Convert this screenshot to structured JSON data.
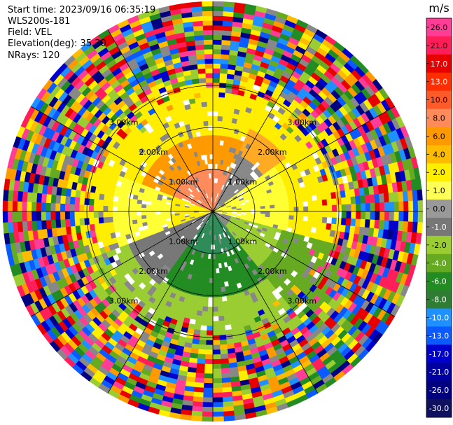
{
  "header": {
    "start_time": "Start time: 2023/09/16 06:35:19",
    "instrument": "WLS200s-181",
    "field": "Field: VEL",
    "elevation": "Elevation(deg): 35.30",
    "nrays": "NRays: 120"
  },
  "colorbar": {
    "units": "m/s",
    "ticks": [
      "26.0",
      "21.0",
      "17.0",
      "13.0",
      "10.0",
      "8.0",
      "6.0",
      "4.0",
      "2.0",
      "1.0",
      "0.0",
      "-1.0",
      "-2.0",
      "-4.0",
      "-6.0",
      "-8.0",
      "-10.0",
      "-13.0",
      "-17.0",
      "-21.0",
      "-26.0",
      "-30.0"
    ],
    "colors": [
      "#ff3c96",
      "#ff1e5a",
      "#e60000",
      "#ff2d00",
      "#ff5a28",
      "#ff8a5a",
      "#ff9900",
      "#ffbb00",
      "#ffee00",
      "#ffff55",
      "#999999",
      "#777777",
      "#9acd32",
      "#66aa22",
      "#228b22",
      "#2e7d32",
      "#1e90ff",
      "#0a5aff",
      "#0000cd",
      "#0000a0",
      "#000080",
      "#101060"
    ]
  },
  "chart_data": {
    "type": "ppi-radar",
    "field": "VEL",
    "units": "m/s",
    "nrays": 120,
    "range_rings_km": [
      1.0,
      2.0,
      3.0
    ],
    "ring_labels": [
      "1.00km",
      "2.00km",
      "3.00km"
    ],
    "spokes_deg": [
      0,
      30,
      60,
      90,
      120,
      150,
      180,
      210,
      240,
      270,
      300,
      330
    ],
    "grid": true
  }
}
